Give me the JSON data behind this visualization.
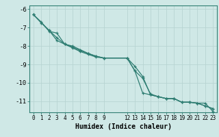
{
  "xlabel": "Humidex (Indice chaleur)",
  "ylabel": "",
  "background_color": "#cfe8e6",
  "grid_color": "#b8d4d2",
  "line_color": "#2e7d72",
  "ylim": [
    -11.6,
    -5.8
  ],
  "xlim": [
    -0.5,
    23.5
  ],
  "yticks": [
    -6,
    -7,
    -8,
    -9,
    -10,
    -11
  ],
  "xticks": [
    0,
    1,
    2,
    3,
    4,
    5,
    6,
    7,
    8,
    9,
    12,
    13,
    14,
    15,
    16,
    17,
    18,
    19,
    20,
    21,
    22,
    23
  ],
  "xtick_labels": [
    "0",
    "1",
    "2",
    "3",
    "4",
    "5",
    "6",
    "7",
    "8",
    "9",
    "12",
    "13",
    "14",
    "15",
    "16",
    "17",
    "18",
    "19",
    "20",
    "21",
    "22",
    "23"
  ],
  "line1_x": [
    0,
    1,
    2,
    3,
    4,
    5,
    6,
    7,
    8,
    9,
    12,
    13,
    14,
    15,
    16,
    17,
    18,
    19,
    20,
    21,
    22,
    23
  ],
  "line1_y": [
    -6.3,
    -6.7,
    -7.2,
    -7.3,
    -7.9,
    -8.1,
    -8.3,
    -8.45,
    -8.6,
    -8.65,
    -8.65,
    -9.35,
    -9.75,
    -10.6,
    -10.75,
    -10.85,
    -10.85,
    -11.05,
    -11.05,
    -11.1,
    -11.25,
    -11.4
  ],
  "line2_x": [
    0,
    1,
    2,
    3,
    4,
    5,
    6,
    7,
    8,
    9,
    12,
    13,
    14,
    15,
    16,
    17,
    18,
    19,
    20,
    21,
    22,
    23
  ],
  "line2_y": [
    -6.3,
    -6.75,
    -7.15,
    -7.7,
    -7.9,
    -8.05,
    -8.25,
    -8.4,
    -8.55,
    -8.65,
    -8.65,
    -9.1,
    -9.65,
    -10.65,
    -10.75,
    -10.85,
    -10.85,
    -11.05,
    -11.05,
    -11.1,
    -11.25,
    -11.4
  ],
  "line3_x": [
    0,
    2,
    3,
    4,
    5,
    6,
    7,
    8,
    9,
    12,
    13,
    14,
    15,
    16,
    17,
    18,
    19,
    20,
    21,
    22,
    23
  ],
  "line3_y": [
    -6.3,
    -7.15,
    -7.55,
    -7.9,
    -8.0,
    -8.2,
    -8.4,
    -8.55,
    -8.65,
    -8.65,
    -9.35,
    -10.55,
    -10.65,
    -10.75,
    -10.85,
    -10.85,
    -11.05,
    -11.05,
    -11.1,
    -11.1,
    -11.55
  ],
  "figsize": [
    3.2,
    2.0
  ],
  "dpi": 100
}
